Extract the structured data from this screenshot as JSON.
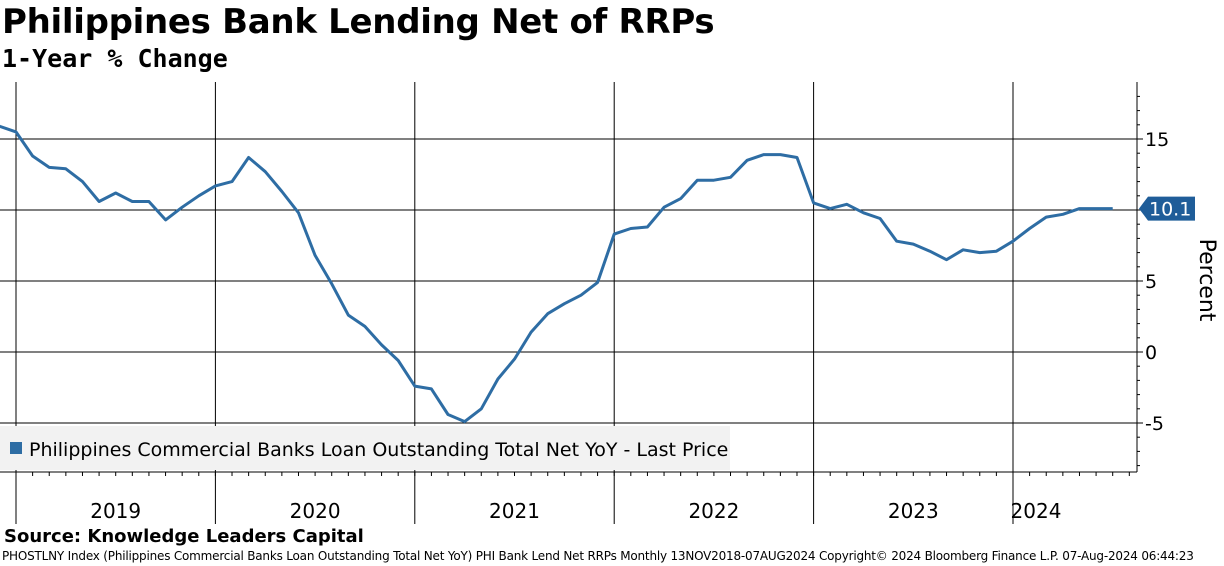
{
  "header": {
    "title": "Philippines Bank Lending Net of RRPs",
    "subtitle": "1-Year % Change"
  },
  "source": "Source: Knowledge Leaders Capital",
  "footer": "PHOSTLNY Index (Philippines Commercial Banks Loan Outstanding Total Net YoY) PHI Bank Lend Net RRPs  Monthly 13NOV2018-07AUG2024  Copyright© 2024 Bloomberg Finance L.P.  07-Aug-2024 06:44:23",
  "chart_data": {
    "type": "line",
    "title": "Philippines Bank Lending Net of RRPs",
    "subtitle": "1-Year % Change",
    "ylabel": "Percent",
    "ylim": [
      -8.5,
      18.5
    ],
    "y_ticks": [
      -5,
      0,
      5,
      10,
      15
    ],
    "x_years": [
      "2019",
      "2020",
      "2021",
      "2022",
      "2023",
      "2024"
    ],
    "y_axis_position": "right",
    "grid": true,
    "legend": "bottom-left",
    "last_value_label": "10.1",
    "series": [
      {
        "name": "Philippines Commercial Banks Loan Outstanding Total Net YoY - Last Price",
        "color": "#2e6da4",
        "x": [
          "2018-11",
          "2018-12",
          "2019-01",
          "2019-02",
          "2019-03",
          "2019-04",
          "2019-05",
          "2019-06",
          "2019-07",
          "2019-08",
          "2019-09",
          "2019-10",
          "2019-11",
          "2019-12",
          "2020-01",
          "2020-02",
          "2020-03",
          "2020-04",
          "2020-05",
          "2020-06",
          "2020-07",
          "2020-08",
          "2020-09",
          "2020-10",
          "2020-11",
          "2020-12",
          "2021-01",
          "2021-02",
          "2021-03",
          "2021-04",
          "2021-05",
          "2021-06",
          "2021-07",
          "2021-08",
          "2021-09",
          "2021-10",
          "2021-11",
          "2021-12",
          "2022-01",
          "2022-02",
          "2022-03",
          "2022-04",
          "2022-05",
          "2022-06",
          "2022-07",
          "2022-08",
          "2022-09",
          "2022-10",
          "2022-11",
          "2022-12",
          "2023-01",
          "2023-02",
          "2023-03",
          "2023-04",
          "2023-05",
          "2023-06",
          "2023-07",
          "2023-08",
          "2023-09",
          "2023-10",
          "2023-11",
          "2023-12",
          "2024-01",
          "2024-02",
          "2024-03",
          "2024-04",
          "2024-05",
          "2024-06",
          "2024-07"
        ],
        "values": [
          16.9,
          15.9,
          15.5,
          13.8,
          13.0,
          12.9,
          12.0,
          10.6,
          11.2,
          10.6,
          10.6,
          9.3,
          10.2,
          11.0,
          11.7,
          12.0,
          13.7,
          12.7,
          11.3,
          9.8,
          6.8,
          4.8,
          2.6,
          1.8,
          0.5,
          -0.6,
          -2.4,
          -2.6,
          -4.4,
          -4.9,
          -4.0,
          -1.9,
          -0.5,
          1.4,
          2.7,
          3.4,
          4.0,
          4.9,
          8.3,
          8.7,
          8.8,
          10.2,
          10.8,
          12.1,
          12.1,
          12.3,
          13.5,
          13.9,
          13.9,
          13.7,
          10.5,
          10.1,
          10.4,
          9.8,
          9.4,
          7.8,
          7.6,
          7.1,
          6.5,
          7.2,
          7.0,
          7.1,
          7.8,
          8.7,
          9.5,
          9.7,
          10.1,
          10.1,
          10.1
        ]
      }
    ]
  }
}
